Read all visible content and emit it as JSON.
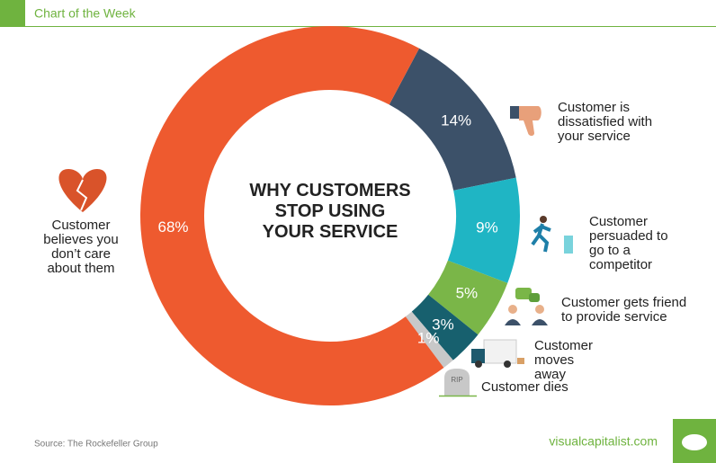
{
  "header": "Chart of the Week",
  "chart_data": {
    "type": "donut",
    "title": "WHY CUSTOMERS STOP USING YOUR SERVICE",
    "categories": [
      "Customer is dissatisfied with your service",
      "Customer persuaded to go to a competitor",
      "Customer gets friend to provide service",
      "Customer moves away",
      "Customer dies",
      "Customer believes you don’t care about them"
    ],
    "values": [
      14,
      9,
      5,
      3,
      1,
      68
    ],
    "value_labels": [
      "14%",
      "9%",
      "5%",
      "3%",
      "1%",
      "68%"
    ],
    "colors": [
      "#3c5169",
      "#1fb5c4",
      "#7ab648",
      "#17606e",
      "#c8c8c8",
      "#ee5a2f"
    ]
  },
  "footer": {
    "source": "Source: The Rockefeller Group",
    "brand": "visualcapitalist.com"
  }
}
